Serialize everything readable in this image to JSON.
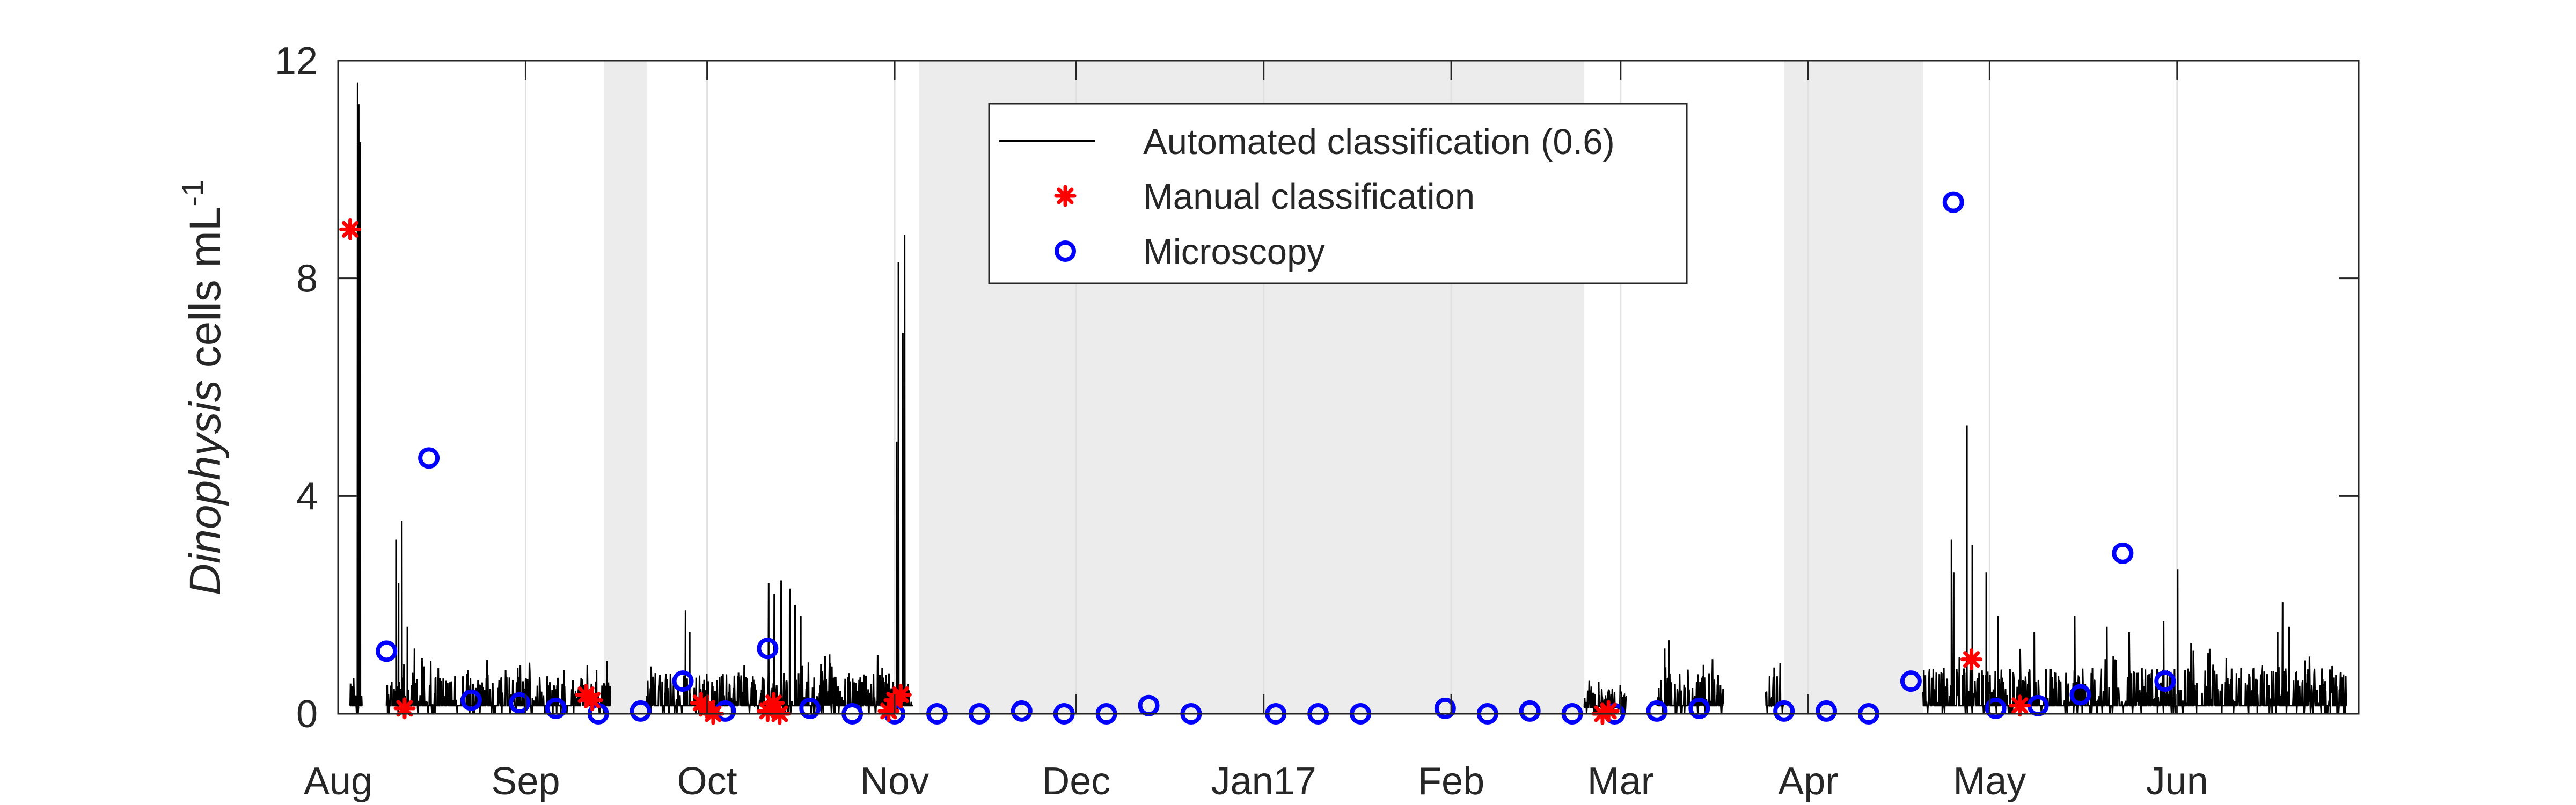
{
  "chart_data": {
    "type": "line",
    "title": "",
    "ylabel": {
      "italic": "Dinophysis",
      "plain": " cells mL",
      "sup": "-1"
    },
    "xlabel": "",
    "x_axis": {
      "type": "date",
      "range": [
        "2016-08-01",
        "2017-07-01"
      ],
      "ticks": [
        {
          "date": "2016-08-01",
          "label": "Aug"
        },
        {
          "date": "2016-09-01",
          "label": "Sep"
        },
        {
          "date": "2016-10-01",
          "label": "Oct"
        },
        {
          "date": "2016-11-01",
          "label": "Nov"
        },
        {
          "date": "2016-12-01",
          "label": "Dec"
        },
        {
          "date": "2017-01-01",
          "label": "Jan17"
        },
        {
          "date": "2017-02-01",
          "label": "Feb"
        },
        {
          "date": "2017-03-01",
          "label": "Mar"
        },
        {
          "date": "2017-04-01",
          "label": "Apr"
        },
        {
          "date": "2017-05-01",
          "label": "May"
        },
        {
          "date": "2017-06-01",
          "label": "Jun"
        }
      ]
    },
    "y_axis": {
      "range": [
        0,
        12
      ],
      "ticks": [
        0,
        4,
        8,
        12
      ]
    },
    "grid": {
      "vertical": true,
      "horizontal": false
    },
    "shaded_periods": [
      {
        "start": "2016-09-14",
        "end": "2016-09-21"
      },
      {
        "start": "2016-11-05",
        "end": "2017-02-23"
      },
      {
        "start": "2017-03-28",
        "end": "2017-04-20"
      }
    ],
    "legend": {
      "position": "top-center"
    },
    "colors": {
      "automated": "#000000",
      "manual": "#ff0000",
      "microscopy": "#0000ff",
      "shade": "#ececec",
      "grid": "#e1e1e1",
      "axis": "#262626"
    },
    "series": [
      {
        "name": "Automated classification (0.6)",
        "style": "line",
        "segments": [
          {
            "start": "2016-08-03",
            "end": "2016-08-05",
            "base": 0.15,
            "noise": 0.4,
            "peaks": [
              {
                "date": "2016-08-04",
                "value": 11.6
              },
              {
                "date": "2016-08-04",
                "value": 11.2
              },
              {
                "date": "2016-08-04",
                "value": 10.5
              }
            ]
          },
          {
            "start": "2016-08-09",
            "end": "2016-09-15",
            "base": 0.15,
            "noise": 0.55,
            "peaks": [
              {
                "date": "2016-08-10",
                "value": 3.2
              },
              {
                "date": "2016-08-11",
                "value": 3.55
              },
              {
                "date": "2016-08-11",
                "value": 2.4
              },
              {
                "date": "2016-08-12",
                "value": 1.6
              },
              {
                "date": "2016-08-13",
                "value": 1.2
              },
              {
                "date": "2016-08-22",
                "value": 0.8
              },
              {
                "date": "2016-09-07",
                "value": 0.8
              },
              {
                "date": "2016-09-12",
                "value": 0.8
              }
            ]
          },
          {
            "start": "2016-09-21",
            "end": "2016-11-04",
            "base": 0.15,
            "noise": 0.6,
            "peaks": [
              {
                "date": "2016-09-27",
                "value": 1.9
              },
              {
                "date": "2016-09-28",
                "value": 1.5
              },
              {
                "date": "2016-10-11",
                "value": 2.4
              },
              {
                "date": "2016-10-12",
                "value": 2.2
              },
              {
                "date": "2016-10-13",
                "value": 2.45
              },
              {
                "date": "2016-10-14",
                "value": 2.3
              },
              {
                "date": "2016-10-15",
                "value": 2.0
              },
              {
                "date": "2016-10-16",
                "value": 1.8
              },
              {
                "date": "2016-11-01",
                "value": 8.3
              },
              {
                "date": "2016-11-02",
                "value": 8.8
              },
              {
                "date": "2016-11-02",
                "value": 7.0
              },
              {
                "date": "2016-11-01",
                "value": 5.0
              }
            ]
          },
          {
            "start": "2017-02-23",
            "end": "2017-03-02",
            "base": 0.12,
            "noise": 0.35,
            "peaks": [
              {
                "date": "2017-02-24",
                "value": 0.5
              }
            ]
          },
          {
            "start": "2017-03-07",
            "end": "2017-03-18",
            "base": 0.15,
            "noise": 0.6,
            "peaks": [
              {
                "date": "2017-03-08",
                "value": 1.2
              },
              {
                "date": "2017-03-09",
                "value": 1.35
              },
              {
                "date": "2017-03-14",
                "value": 0.9
              }
            ]
          },
          {
            "start": "2017-03-25",
            "end": "2017-03-28",
            "base": 0.15,
            "noise": 0.55,
            "peaks": [
              {
                "date": "2017-03-26",
                "value": 0.85
              }
            ]
          },
          {
            "start": "2017-04-20",
            "end": "2017-06-29",
            "base": 0.15,
            "noise": 0.7,
            "peaks": [
              {
                "date": "2017-04-24",
                "value": 3.2
              },
              {
                "date": "2017-04-25",
                "value": 2.6
              },
              {
                "date": "2017-04-27",
                "value": 5.3
              },
              {
                "date": "2017-04-28",
                "value": 3.1
              },
              {
                "date": "2017-04-30",
                "value": 2.6
              },
              {
                "date": "2017-05-02",
                "value": 1.8
              },
              {
                "date": "2017-05-08",
                "value": 1.5
              },
              {
                "date": "2017-05-15",
                "value": 1.8
              },
              {
                "date": "2017-05-20",
                "value": 1.6
              },
              {
                "date": "2017-05-24",
                "value": 1.5
              },
              {
                "date": "2017-05-29",
                "value": 1.7
              },
              {
                "date": "2017-06-01",
                "value": 2.65
              },
              {
                "date": "2017-06-03",
                "value": 1.3
              },
              {
                "date": "2017-06-17",
                "value": 1.5
              },
              {
                "date": "2017-06-18",
                "value": 2.05
              },
              {
                "date": "2017-06-19",
                "value": 1.6
              },
              {
                "date": "2017-06-25",
                "value": 0.6
              }
            ]
          }
        ]
      },
      {
        "name": "Manual classification",
        "style": "asterisk",
        "points": [
          {
            "date": "2016-08-03",
            "value": 8.9
          },
          {
            "date": "2016-08-12",
            "value": 0.1
          },
          {
            "date": "2016-09-11",
            "value": 0.35
          },
          {
            "date": "2016-09-12",
            "value": 0.25
          },
          {
            "date": "2016-09-30",
            "value": 0.2
          },
          {
            "date": "2016-10-01",
            "value": 0.1
          },
          {
            "date": "2016-10-02",
            "value": 0.0
          },
          {
            "date": "2016-10-11",
            "value": 0.05
          },
          {
            "date": "2016-10-12",
            "value": 0.2
          },
          {
            "date": "2016-10-13",
            "value": 0.0
          },
          {
            "date": "2016-10-31",
            "value": 0.05
          },
          {
            "date": "2016-11-01",
            "value": 0.25
          },
          {
            "date": "2016-11-02",
            "value": 0.35
          },
          {
            "date": "2017-02-26",
            "value": 0.0
          },
          {
            "date": "2017-02-27",
            "value": 0.05
          },
          {
            "date": "2017-04-28",
            "value": 1.0
          },
          {
            "date": "2017-05-06",
            "value": 0.15
          }
        ]
      },
      {
        "name": "Microscopy",
        "style": "circle",
        "points": [
          {
            "date": "2016-08-09",
            "value": 1.15
          },
          {
            "date": "2016-08-16",
            "value": 4.7
          },
          {
            "date": "2016-08-23",
            "value": 0.25
          },
          {
            "date": "2016-08-31",
            "value": 0.2
          },
          {
            "date": "2016-09-06",
            "value": 0.1
          },
          {
            "date": "2016-09-13",
            "value": 0.0
          },
          {
            "date": "2016-09-20",
            "value": 0.05
          },
          {
            "date": "2016-09-27",
            "value": 0.6
          },
          {
            "date": "2016-10-04",
            "value": 0.05
          },
          {
            "date": "2016-10-11",
            "value": 1.2
          },
          {
            "date": "2016-10-18",
            "value": 0.1
          },
          {
            "date": "2016-10-25",
            "value": 0.0
          },
          {
            "date": "2016-11-01",
            "value": 0.0
          },
          {
            "date": "2016-11-08",
            "value": 0.0
          },
          {
            "date": "2016-11-15",
            "value": 0.0
          },
          {
            "date": "2016-11-22",
            "value": 0.05
          },
          {
            "date": "2016-11-29",
            "value": 0.0
          },
          {
            "date": "2016-12-06",
            "value": 0.0
          },
          {
            "date": "2016-12-13",
            "value": 0.15
          },
          {
            "date": "2016-12-20",
            "value": 0.0
          },
          {
            "date": "2017-01-03",
            "value": 0.0
          },
          {
            "date": "2017-01-10",
            "value": 0.0
          },
          {
            "date": "2017-01-17",
            "value": 0.0
          },
          {
            "date": "2017-01-31",
            "value": 0.1
          },
          {
            "date": "2017-02-07",
            "value": 0.0
          },
          {
            "date": "2017-02-14",
            "value": 0.05
          },
          {
            "date": "2017-02-21",
            "value": 0.0
          },
          {
            "date": "2017-02-28",
            "value": 0.0
          },
          {
            "date": "2017-03-07",
            "value": 0.05
          },
          {
            "date": "2017-03-14",
            "value": 0.1
          },
          {
            "date": "2017-03-28",
            "value": 0.05
          },
          {
            "date": "2017-04-04",
            "value": 0.05
          },
          {
            "date": "2017-04-11",
            "value": 0.0
          },
          {
            "date": "2017-04-18",
            "value": 0.6
          },
          {
            "date": "2017-04-25",
            "value": 9.4
          },
          {
            "date": "2017-05-02",
            "value": 0.1
          },
          {
            "date": "2017-05-09",
            "value": 0.15
          },
          {
            "date": "2017-05-16",
            "value": 0.35
          },
          {
            "date": "2017-05-23",
            "value": 2.95
          },
          {
            "date": "2017-05-30",
            "value": 0.6
          }
        ]
      }
    ]
  }
}
